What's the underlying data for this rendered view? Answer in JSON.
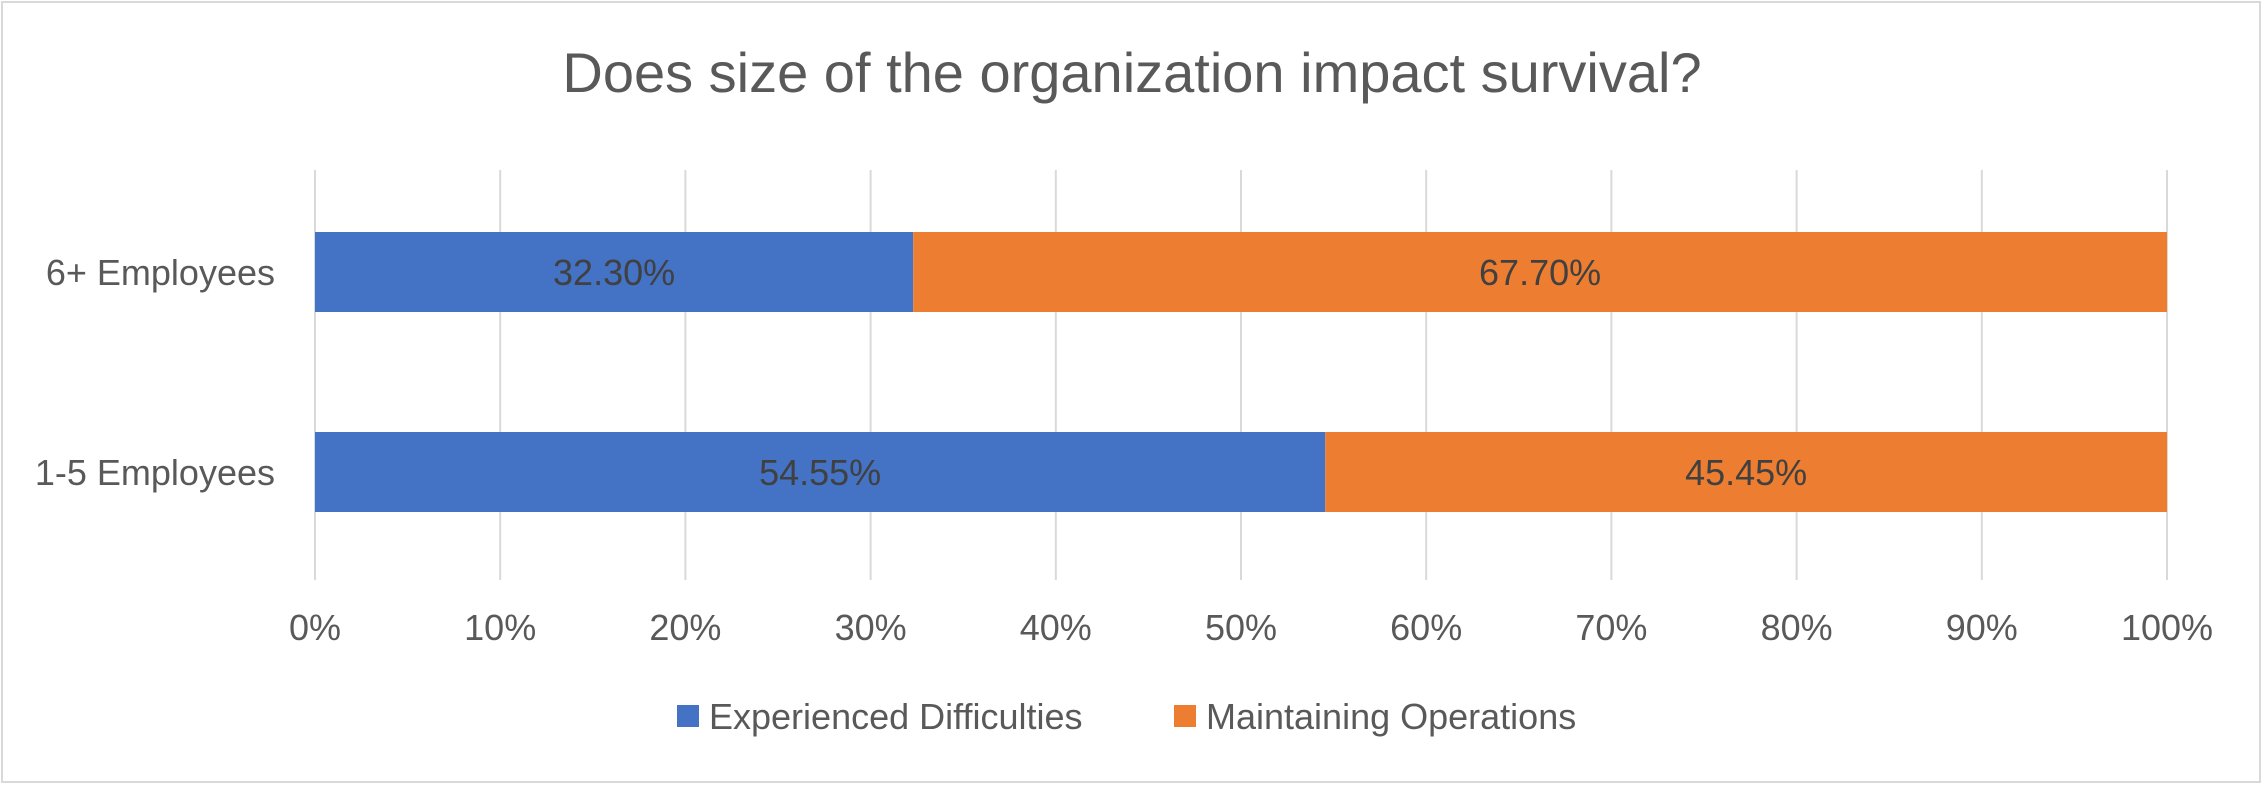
{
  "chart_data": {
    "type": "bar",
    "orientation": "horizontal",
    "stacked": true,
    "title": "Does size of the organization impact survival?",
    "categories": [
      "6+ Employees",
      "1-5 Employees"
    ],
    "series": [
      {
        "name": "Experienced Difficulties",
        "values": [
          32.3,
          54.55
        ],
        "labels": [
          "32.30%",
          "54.55%"
        ],
        "color": "#4472C4"
      },
      {
        "name": "Maintaining Operations",
        "values": [
          67.7,
          45.45
        ],
        "labels": [
          "67.70%",
          "45.45%"
        ],
        "color": "#ED7D31"
      }
    ],
    "xlim": [
      0,
      100
    ],
    "x_ticks": [
      "0%",
      "10%",
      "20%",
      "30%",
      "40%",
      "50%",
      "60%",
      "70%",
      "80%",
      "90%",
      "100%"
    ],
    "grid": true,
    "legend": "bottom"
  }
}
